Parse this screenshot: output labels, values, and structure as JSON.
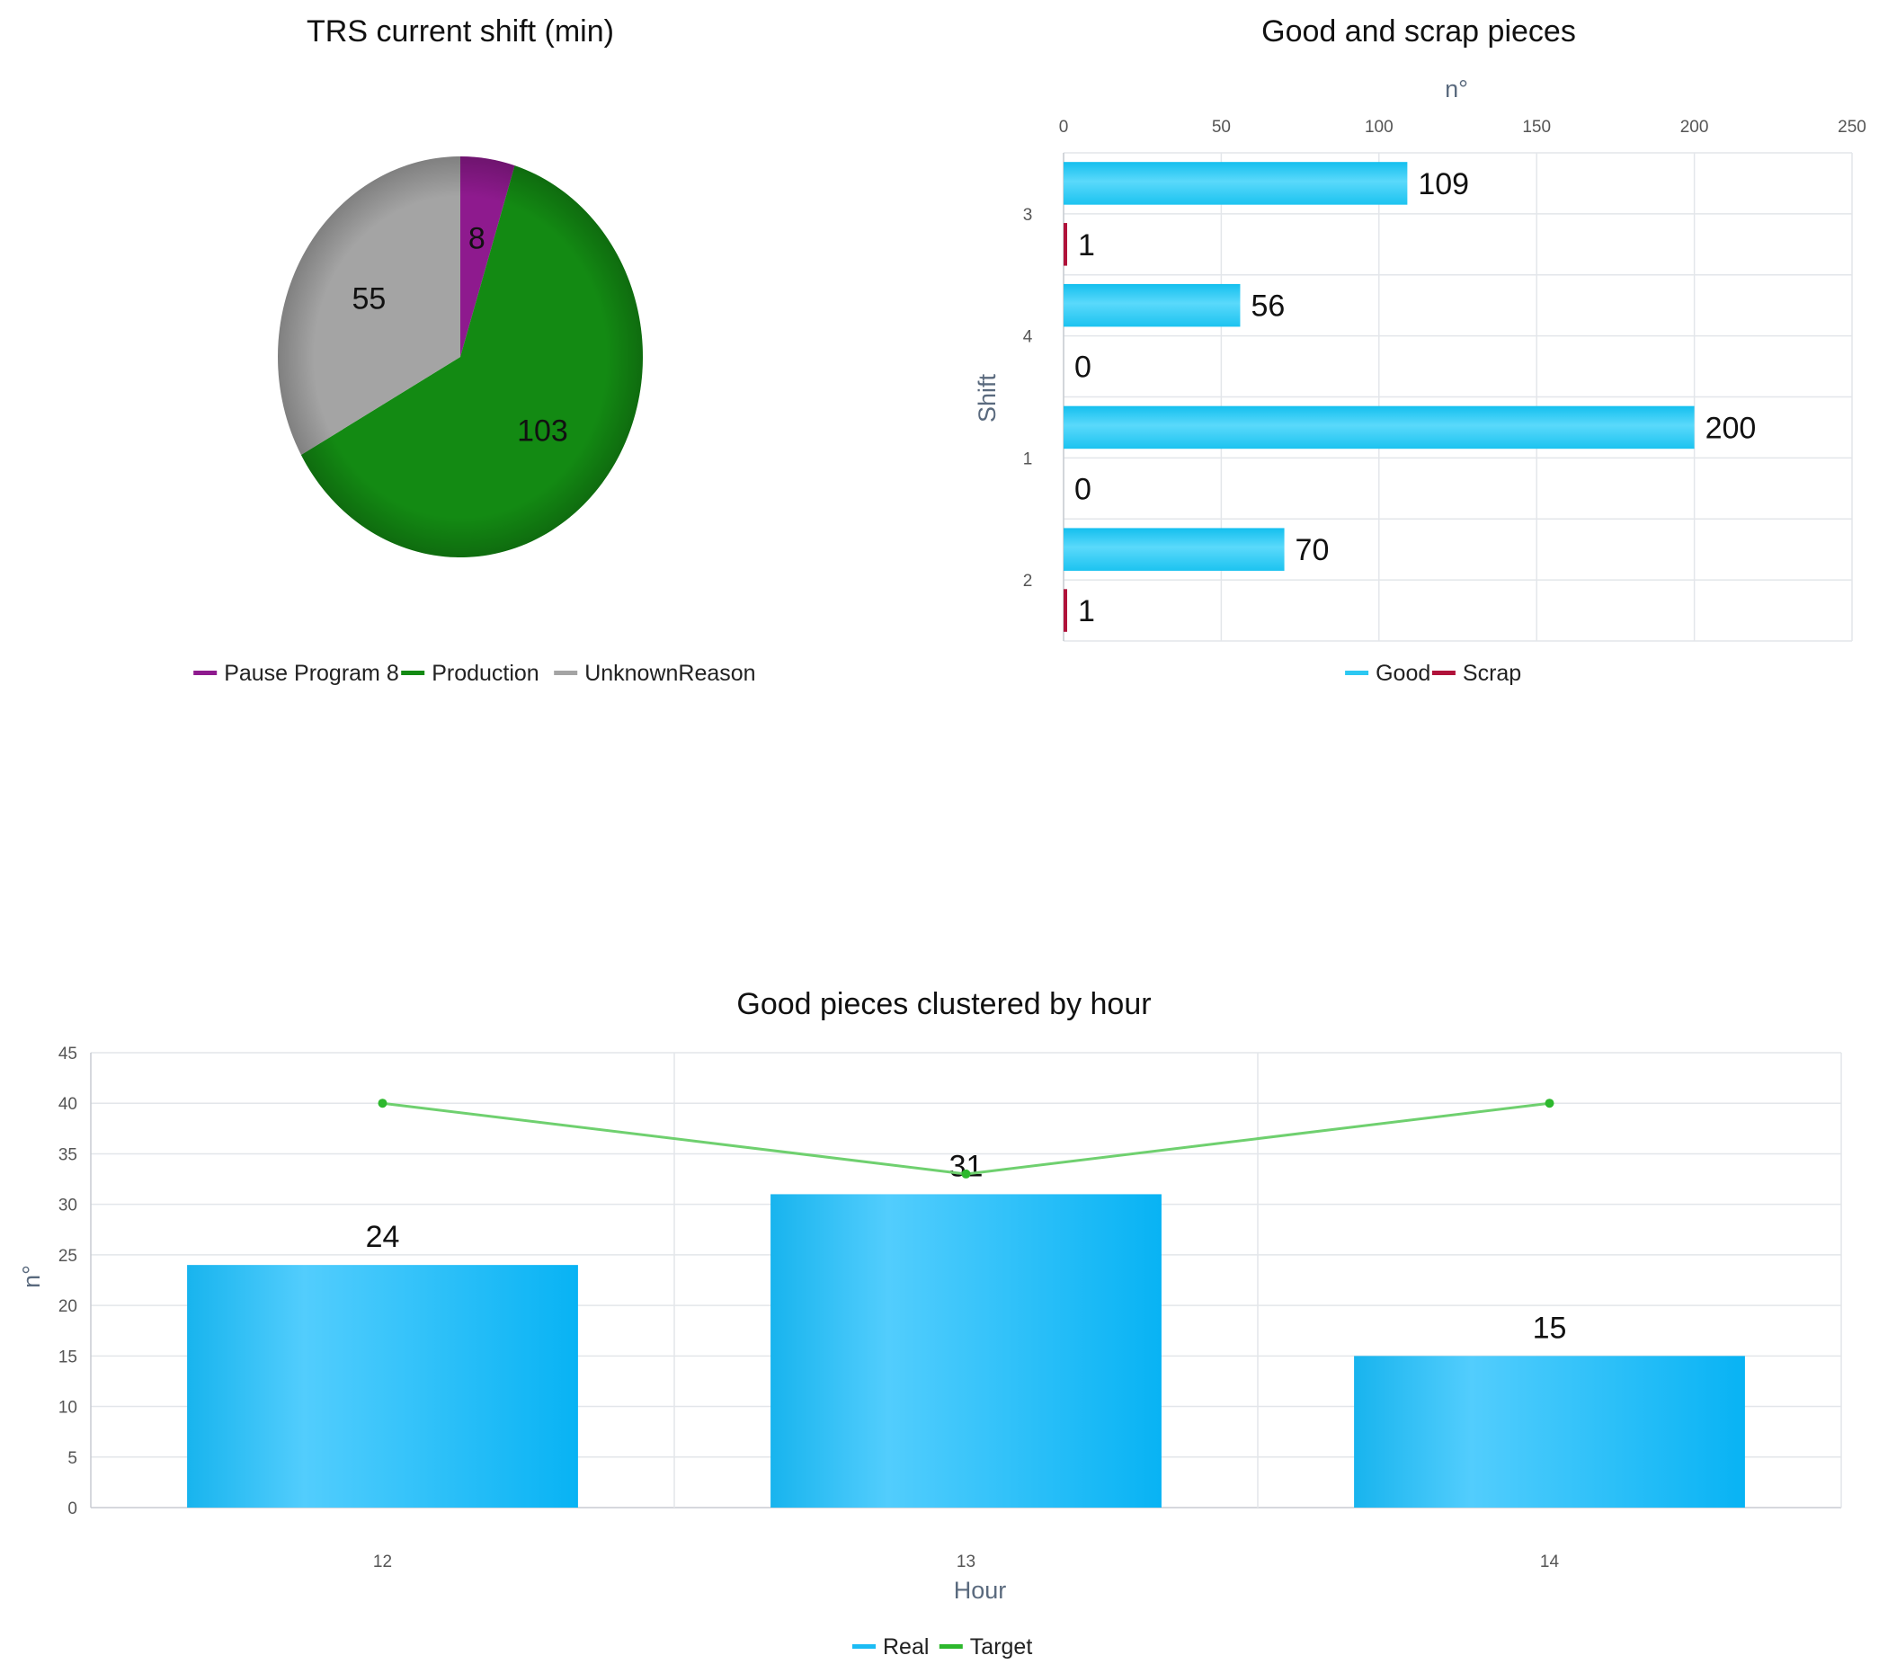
{
  "chart_data": [
    {
      "type": "pie",
      "title": "TRS current shift (min)",
      "slices": [
        {
          "name": "Pause Program 8",
          "value": 8,
          "color": "#8e1a8e"
        },
        {
          "name": "Production",
          "value": 103,
          "color": "#138a13"
        },
        {
          "name": "UnknownReason",
          "value": 55,
          "color": "#a4a4a4"
        }
      ],
      "legend_position": "bottom"
    },
    {
      "type": "bar",
      "orientation": "horizontal",
      "title": "Good and scrap pieces",
      "xlabel": "n°",
      "ylabel": "Shift",
      "categories": [
        "3",
        "4",
        "1",
        "2"
      ],
      "series": [
        {
          "name": "Good",
          "values": [
            109,
            56,
            200,
            70
          ],
          "color": "#2cc8f2"
        },
        {
          "name": "Scrap",
          "values": [
            1,
            0,
            0,
            1
          ],
          "color": "#b0123a"
        }
      ],
      "xlim": [
        0,
        250
      ],
      "xticks": [
        0,
        50,
        100,
        150,
        200,
        250
      ],
      "grid": true,
      "legend_position": "bottom"
    },
    {
      "type": "bar",
      "title": "Good pieces clustered by hour",
      "xlabel": "Hour",
      "ylabel": "n°",
      "categories": [
        "12",
        "13",
        "14"
      ],
      "series": [
        {
          "name": "Real",
          "type": "bar",
          "values": [
            24,
            31,
            15
          ],
          "color": "#1cbcf4"
        },
        {
          "name": "Target",
          "type": "line",
          "values": [
            40,
            33,
            40
          ],
          "color": "#2db82d"
        }
      ],
      "ylim": [
        0,
        45
      ],
      "yticks": [
        0,
        5,
        10,
        15,
        20,
        25,
        30,
        35,
        40,
        45
      ],
      "grid": true,
      "legend_position": "bottom"
    }
  ]
}
